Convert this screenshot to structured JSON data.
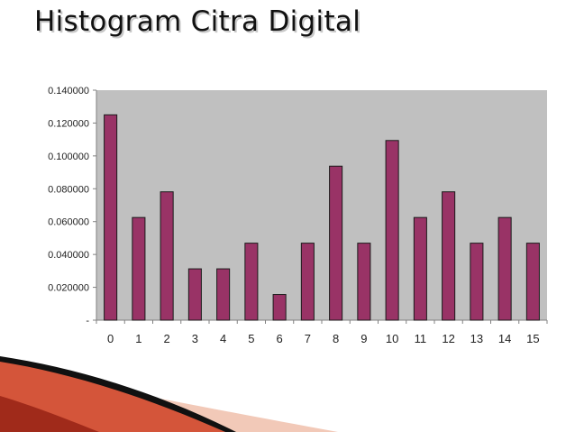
{
  "slide": {
    "title": "Histogram Citra Digital"
  },
  "chart_data": {
    "type": "bar",
    "title": "",
    "xlabel": "",
    "ylabel": "",
    "categories": [
      "0",
      "1",
      "2",
      "3",
      "4",
      "5",
      "6",
      "7",
      "8",
      "9",
      "10",
      "11",
      "12",
      "13",
      "14",
      "15"
    ],
    "values": [
      0.125,
      0.0625,
      0.078125,
      0.03125,
      0.03125,
      0.046875,
      0.015625,
      0.046875,
      0.09375,
      0.046875,
      0.109375,
      0.0625,
      0.078125,
      0.046875,
      0.0625,
      0.046875
    ],
    "ylim": [
      0,
      0.14
    ],
    "y_ticks": [
      {
        "value": 0,
        "label": "-"
      },
      {
        "value": 0.02,
        "label": "0.020000"
      },
      {
        "value": 0.04,
        "label": "0.040000"
      },
      {
        "value": 0.06,
        "label": "0.060000"
      },
      {
        "value": 0.08,
        "label": "0.080000"
      },
      {
        "value": 0.1,
        "label": "0.100000"
      },
      {
        "value": 0.12,
        "label": "0.120000"
      },
      {
        "value": 0.14,
        "label": "0.140000"
      }
    ],
    "grid": false,
    "legend": "none",
    "colors": {
      "bar_fill": "#993366",
      "bar_stroke": "#1a1a1a",
      "plot_background": "#c0c0c0",
      "axis": "#808080"
    }
  },
  "decor": {
    "swoosh_light": "#f2c9b8",
    "swoosh_mid": "#d4553a",
    "swoosh_dark": "#a02a1a",
    "swoosh_line": "#111111"
  }
}
